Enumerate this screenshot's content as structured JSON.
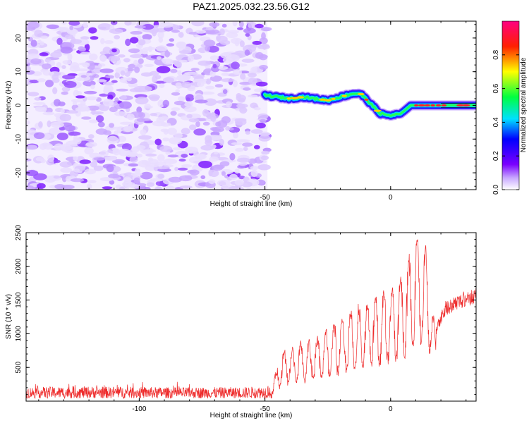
{
  "figure_title": "PAZ1.2025.032.23.56.G12",
  "chart_data": [
    {
      "type": "heatmap",
      "xlabel": "Height of straight line (km)",
      "ylabel": "Frequency (Hz)",
      "xlim": [
        -145,
        34
      ],
      "ylim": [
        -25,
        25
      ],
      "xticks": [
        -100,
        -50,
        0
      ],
      "yticks": [
        -20,
        -10,
        0,
        10,
        20
      ],
      "colorbar": {
        "label": "Normalized spectral amplitude",
        "range": [
          0,
          1
        ],
        "ticks": [
          "0.0",
          "0.2",
          "0.4",
          "0.6",
          "0.8"
        ],
        "colormap": "rainbow (white → purple → blue → cyan → green → yellow → red → magenta)"
      },
      "noise_region_x": [
        -145,
        -49
      ],
      "signal_trace": {
        "x": [
          -50,
          -45,
          -40,
          -35,
          -30,
          -25,
          -20,
          -15,
          -12,
          -8,
          -4,
          0,
          4,
          8,
          12,
          18,
          25,
          34
        ],
        "frequency": [
          3,
          2.5,
          2,
          2.5,
          2,
          1.5,
          2.5,
          3.5,
          3.5,
          0.5,
          -2.5,
          -3,
          -2.5,
          0,
          0,
          0,
          0,
          0
        ]
      }
    },
    {
      "type": "line",
      "xlabel": "Height of straight line (km)",
      "ylabel": "SNR (10 * v/v)",
      "xlim": [
        -145,
        34
      ],
      "ylim": [
        0,
        2500
      ],
      "xticks": [
        -100,
        -50,
        0
      ],
      "yticks": [
        500,
        1000,
        1500,
        2000,
        2500
      ],
      "series": [
        {
          "color": "#ee2b2b",
          "envelope_x": [
            -145,
            -120,
            -100,
            -80,
            -60,
            -50,
            -47,
            -45,
            -43,
            -40,
            -35,
            -30,
            -25,
            -20,
            -15,
            -10,
            -5,
            0,
            5,
            8,
            10,
            12,
            15,
            17,
            18,
            20,
            22,
            25,
            30,
            34
          ],
          "envelope_y": [
            150,
            160,
            150,
            145,
            150,
            160,
            250,
            500,
            750,
            800,
            850,
            900,
            1050,
            1200,
            1350,
            1450,
            1550,
            1650,
            1850,
            2200,
            2400,
            2350,
            2300,
            1250,
            1150,
            1350,
            1500,
            1550,
            1650,
            1700
          ]
        }
      ]
    }
  ]
}
